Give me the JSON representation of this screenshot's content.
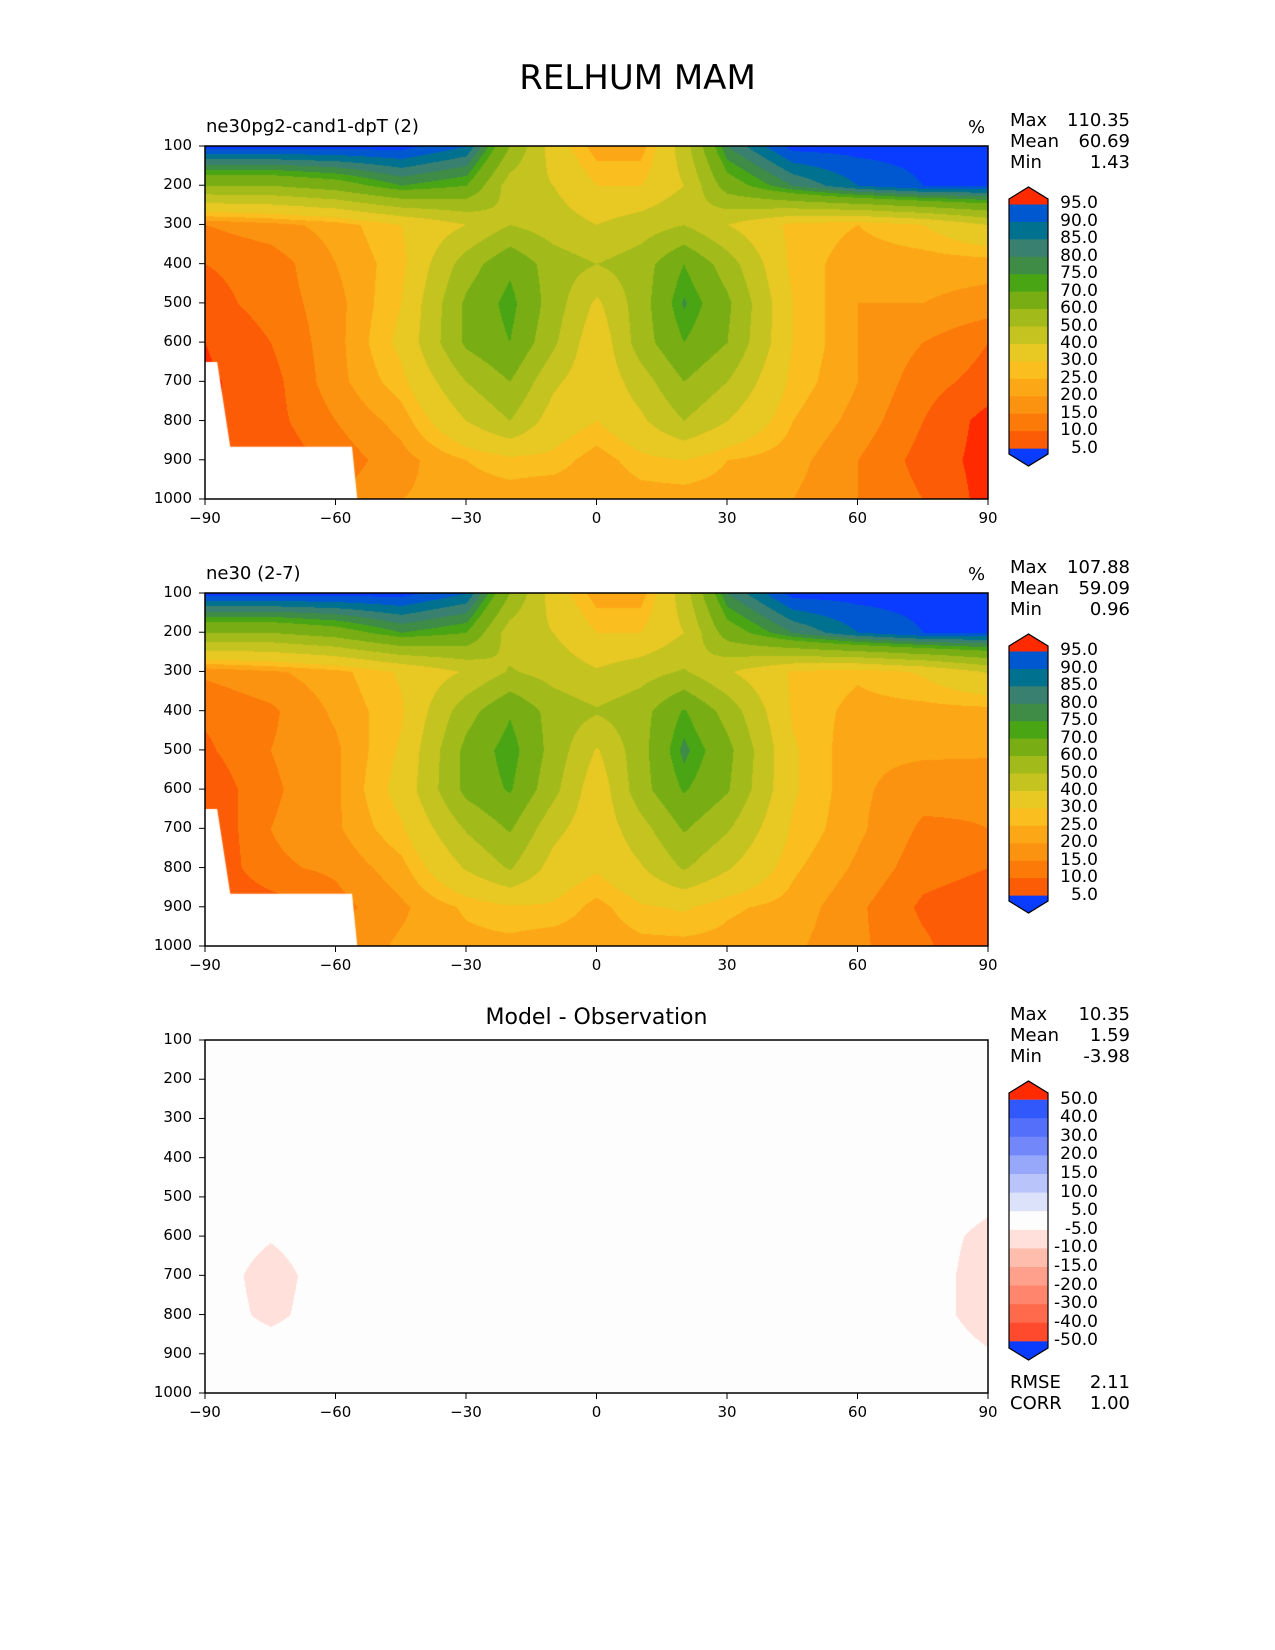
{
  "page_title": "RELHUM MAM",
  "chart_data": [
    {
      "type": "heatmap",
      "title": "ne30pg2-cand1-dpT (2)",
      "units": "%",
      "stats": {
        "max_label": "Max",
        "max": "110.35",
        "mean_label": "Mean",
        "mean": "60.69",
        "min_label": "Min",
        "min": "1.43"
      },
      "field": "p1"
    },
    {
      "type": "heatmap",
      "title": "ne30 (2-7)",
      "units": "%",
      "stats": {
        "max_label": "Max",
        "max": "107.88",
        "mean_label": "Mean",
        "mean": "59.09",
        "min_label": "Min",
        "min": "0.96"
      },
      "field": "p2"
    },
    {
      "type": "heatmap",
      "title": "Model - Observation",
      "units": "",
      "stats": {
        "max_label": "Max",
        "max": "10.35",
        "mean_label": "Mean",
        "mean": "1.59",
        "min_label": "Min",
        "min": "-3.98"
      },
      "extra": {
        "rmse_label": "RMSE",
        "rmse": "2.11",
        "corr_label": "CORR",
        "corr": "1.00"
      },
      "field": "diff"
    }
  ],
  "axes": {
    "x_ticks": [
      "−90",
      "−60",
      "−30",
      "0",
      "30",
      "60",
      "90"
    ],
    "x_values": [
      -90,
      -60,
      -30,
      0,
      30,
      60,
      90
    ],
    "y_ticks": [
      "100",
      "200",
      "300",
      "400",
      "500",
      "600",
      "700",
      "800",
      "900",
      "1000"
    ],
    "xlim": [
      -90,
      90
    ],
    "ylim": [
      100,
      1000
    ]
  },
  "grid": {
    "lats": [
      -90,
      -75,
      -60,
      -45,
      -30,
      -20,
      -10,
      0,
      10,
      20,
      30,
      45,
      60,
      75,
      90
    ],
    "levels": [
      100,
      200,
      300,
      400,
      500,
      600,
      700,
      800,
      900,
      1000
    ],
    "p1": [
      [
        3,
        3,
        3,
        3,
        10,
        40,
        65,
        78,
        78,
        55,
        20,
        3,
        3,
        3,
        3
      ],
      [
        40,
        40,
        35,
        25,
        30,
        55,
        60,
        70,
        70,
        60,
        35,
        20,
        10,
        5,
        5
      ],
      [
        85,
        82,
        78,
        70,
        60,
        50,
        55,
        60,
        55,
        50,
        60,
        72,
        75,
        70,
        60
      ],
      [
        90,
        88,
        80,
        72,
        45,
        32,
        45,
        50,
        45,
        30,
        45,
        72,
        78,
        78,
        78
      ],
      [
        92,
        88,
        82,
        70,
        38,
        27,
        45,
        62,
        45,
        24,
        38,
        70,
        80,
        80,
        82
      ],
      [
        95,
        90,
        82,
        68,
        38,
        30,
        48,
        68,
        45,
        30,
        40,
        70,
        80,
        85,
        90
      ],
      [
        96,
        92,
        82,
        72,
        50,
        40,
        58,
        68,
        55,
        40,
        50,
        72,
        80,
        88,
        92
      ],
      [
        96,
        92,
        85,
        78,
        60,
        50,
        65,
        70,
        62,
        50,
        60,
        75,
        82,
        90,
        97
      ],
      [
        96,
        94,
        88,
        82,
        75,
        72,
        72,
        78,
        72,
        70,
        75,
        78,
        85,
        92,
        97
      ],
      [
        96,
        94,
        85,
        80,
        78,
        78,
        80,
        80,
        78,
        78,
        78,
        80,
        85,
        90,
        97
      ]
    ],
    "p2": [
      [
        3,
        3,
        3,
        3,
        10,
        40,
        65,
        78,
        78,
        55,
        20,
        3,
        3,
        3,
        3
      ],
      [
        40,
        40,
        35,
        25,
        30,
        55,
        60,
        70,
        70,
        60,
        35,
        20,
        10,
        5,
        5
      ],
      [
        84,
        81,
        77,
        69,
        59,
        49,
        54,
        59,
        54,
        49,
        59,
        71,
        74,
        69,
        59
      ],
      [
        89,
        86,
        79,
        71,
        44,
        31,
        44,
        49,
        44,
        29,
        44,
        71,
        77,
        77,
        77
      ],
      [
        91,
        85,
        81,
        69,
        37,
        26,
        44,
        61,
        44,
        23,
        37,
        69,
        79,
        79,
        79
      ],
      [
        94,
        86,
        81,
        67,
        37,
        29,
        47,
        67,
        44,
        29,
        39,
        69,
        79,
        83,
        84
      ],
      [
        95,
        85,
        81,
        71,
        49,
        39,
        57,
        67,
        54,
        39,
        49,
        71,
        79,
        86,
        85
      ],
      [
        95,
        86,
        84,
        77,
        59,
        49,
        64,
        69,
        61,
        49,
        59,
        74,
        81,
        88,
        90
      ],
      [
        95,
        93,
        87,
        81,
        74,
        71,
        71,
        77,
        71,
        69,
        74,
        77,
        84,
        91,
        93
      ],
      [
        95,
        93,
        84,
        79,
        77,
        77,
        79,
        79,
        77,
        77,
        77,
        79,
        84,
        89,
        95
      ]
    ],
    "mask": [
      [
        -90,
        651
      ],
      [
        -87.2,
        651
      ],
      [
        -84.2,
        867
      ],
      [
        -56.2,
        867
      ],
      [
        -55,
        1000
      ],
      [
        -90,
        1000
      ]
    ]
  },
  "colorbars": {
    "rh": {
      "levels": [
        5,
        10,
        15,
        20,
        25,
        30,
        40,
        50,
        60,
        70,
        75,
        80,
        85,
        90,
        95
      ],
      "labels": [
        "5.0",
        "10.0",
        "15.0",
        "20.0",
        "25.0",
        "30.0",
        "40.0",
        "50.0",
        "60.0",
        "70.0",
        "75.0",
        "80.0",
        "85.0",
        "90.0",
        "95.0"
      ],
      "colors": [
        "#0a3cff",
        "#0058d0",
        "#00728f",
        "#3a8070",
        "#3e8c45",
        "#4aa515",
        "#78ae14",
        "#a2bb1a",
        "#c5c31f",
        "#e8c823",
        "#fabe1e",
        "#fca716",
        "#fc9310",
        "#fc7a08",
        "#fc5c05",
        "#ff2a00"
      ]
    },
    "diff": {
      "levels": [
        -50,
        -40,
        -30,
        -20,
        -15,
        -10,
        -5,
        5,
        10,
        15,
        20,
        30,
        40,
        50
      ],
      "labels": [
        "-50.0",
        "-40.0",
        "-30.0",
        "-20.0",
        "-15.0",
        "-10.0",
        "-5.0",
        "5.0",
        "10.0",
        "15.0",
        "20.0",
        "30.0",
        "40.0",
        "50.0"
      ],
      "colors": [
        "#0a3cff",
        "#3058fa",
        "#5470fa",
        "#7288fa",
        "#97a8fa",
        "#b8c4fa",
        "#dce2fa",
        "#fdfdfd",
        "#ffe0da",
        "#ffbdae",
        "#ffa08c",
        "#ff866c",
        "#ff6a4c",
        "#ff4a2e",
        "#ff2a00"
      ]
    }
  }
}
